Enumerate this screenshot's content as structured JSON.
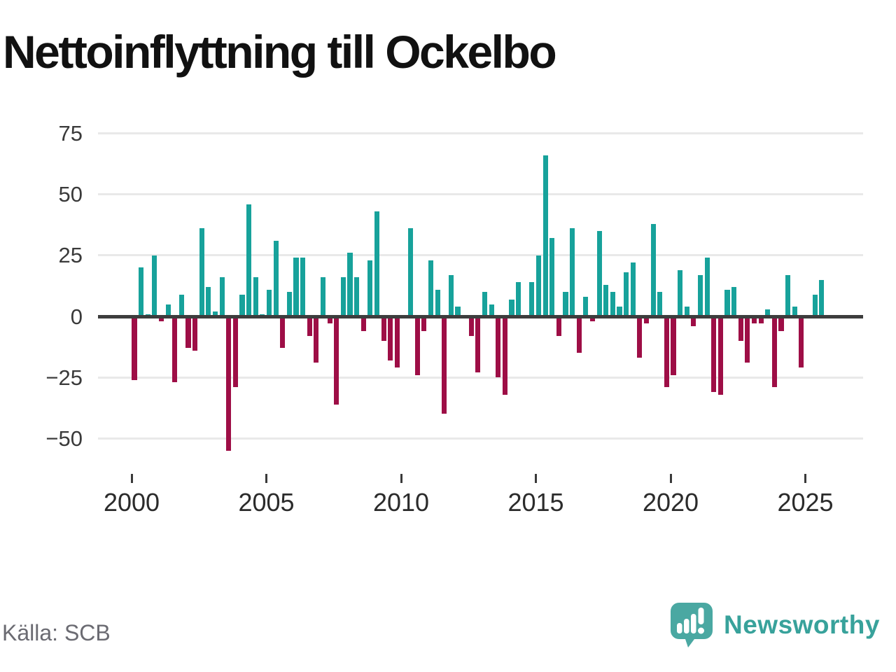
{
  "title": "Nettoinflyttning till Ockelbo",
  "source": "Källa: SCB",
  "brand": {
    "name": "Newsworthy",
    "icon": "newsworthy-speech-bubble-chart-icon",
    "text_color": "#38a29b",
    "icon_color": "#4aa8a2"
  },
  "chart_data": {
    "type": "bar",
    "title": "Nettoinflyttning till Ockelbo",
    "frequency": "quarterly",
    "first_period": "2000 Q1",
    "last_period": "2025 Q3",
    "x_tick_labels": [
      "2000",
      "2005",
      "2010",
      "2015",
      "2020",
      "2025"
    ],
    "y_ticks": [
      75,
      50,
      25,
      0,
      -25,
      -50
    ],
    "ylim": [
      -60,
      82
    ],
    "grid": "horizontal",
    "legend": "none",
    "positive_color": "#17a29b",
    "negative_color": "#9e0e46",
    "years": [
      {
        "year": 2000,
        "q": [
          -26,
          20,
          1,
          25
        ]
      },
      {
        "year": 2001,
        "q": [
          -2,
          5,
          -27,
          9
        ]
      },
      {
        "year": 2002,
        "q": [
          -13,
          -14,
          36,
          12
        ]
      },
      {
        "year": 2003,
        "q": [
          2,
          16,
          -55,
          -29
        ]
      },
      {
        "year": 2004,
        "q": [
          9,
          46,
          16,
          1
        ]
      },
      {
        "year": 2005,
        "q": [
          11,
          31,
          -13,
          10
        ]
      },
      {
        "year": 2006,
        "q": [
          24,
          24,
          -8,
          -19
        ]
      },
      {
        "year": 2007,
        "q": [
          16,
          -3,
          -36,
          16
        ]
      },
      {
        "year": 2008,
        "q": [
          26,
          16,
          -6,
          23
        ]
      },
      {
        "year": 2009,
        "q": [
          43,
          -10,
          -18,
          -21
        ]
      },
      {
        "year": 2010,
        "q": [
          0,
          36,
          -24,
          -6
        ]
      },
      {
        "year": 2011,
        "q": [
          23,
          11,
          -40,
          17
        ]
      },
      {
        "year": 2012,
        "q": [
          4,
          0,
          -8,
          -23
        ]
      },
      {
        "year": 2013,
        "q": [
          10,
          5,
          -25,
          -32
        ]
      },
      {
        "year": 2014,
        "q": [
          7,
          14,
          -1,
          14
        ]
      },
      {
        "year": 2015,
        "q": [
          25,
          66,
          32,
          -8
        ]
      },
      {
        "year": 2016,
        "q": [
          10,
          36,
          -15,
          8
        ]
      },
      {
        "year": 2017,
        "q": [
          -2,
          35,
          13,
          10
        ]
      },
      {
        "year": 2018,
        "q": [
          4,
          18,
          22,
          -17
        ]
      },
      {
        "year": 2019,
        "q": [
          -3,
          38,
          10,
          -29
        ]
      },
      {
        "year": 2020,
        "q": [
          -24,
          19,
          4,
          -4
        ]
      },
      {
        "year": 2021,
        "q": [
          17,
          24,
          -31,
          -32
        ]
      },
      {
        "year": 2022,
        "q": [
          11,
          12,
          -10,
          -19
        ]
      },
      {
        "year": 2023,
        "q": [
          -3,
          -3,
          3,
          -29
        ]
      },
      {
        "year": 2024,
        "q": [
          -6,
          17,
          4,
          -21
        ]
      },
      {
        "year": 2025,
        "q": [
          0,
          9,
          15
        ]
      }
    ]
  }
}
